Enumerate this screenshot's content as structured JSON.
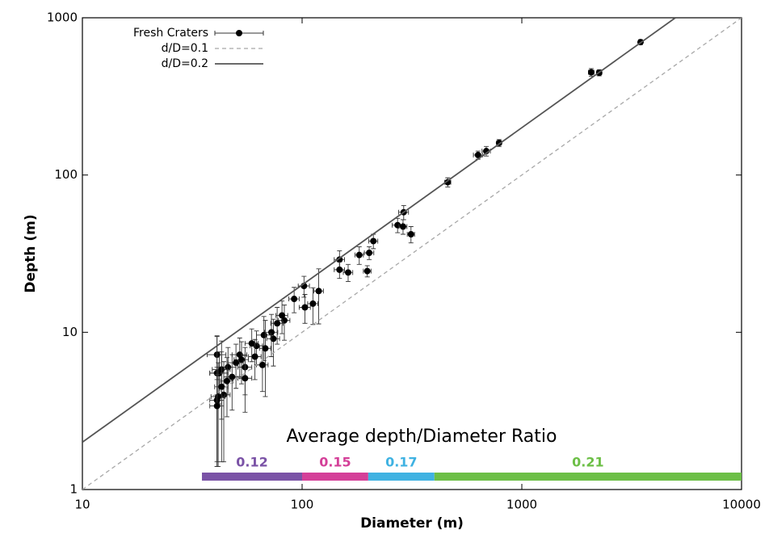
{
  "chart_data": {
    "type": "scatter",
    "xlabel": "Diameter (m)",
    "ylabel": "Depth (m)",
    "xscale": "log",
    "yscale": "log",
    "xlim": [
      10,
      10000
    ],
    "ylim": [
      1,
      1000
    ],
    "xticks": [
      10,
      100,
      1000,
      10000
    ],
    "yticks": [
      1,
      10,
      100,
      1000
    ],
    "legend": "upper left",
    "series": [
      {
        "name": "Fresh Craters",
        "type": "scatter",
        "color": "#000000",
        "x": [
          3470,
          2250,
          2070,
          788,
          689,
          632,
          460,
          290,
          272,
          288,
          313,
          211,
          202,
          198,
          182,
          162,
          148,
          148,
          119,
          112,
          102,
          103,
          92,
          83,
          81,
          77,
          74,
          72.5,
          67,
          68,
          66,
          62,
          59,
          61,
          55,
          52,
          53,
          50,
          55,
          48,
          46,
          42,
          43,
          41,
          41,
          44,
          43,
          41.5,
          41,
          41,
          45.5
        ],
        "y": [
          700,
          447,
          450,
          160,
          142,
          134,
          90,
          58,
          48,
          47,
          42,
          38,
          32,
          24.5,
          31,
          24,
          29,
          25,
          18.3,
          15.2,
          19.7,
          14.4,
          16.3,
          11.9,
          12.8,
          11.4,
          9.1,
          10,
          9.6,
          7.9,
          6.2,
          8.2,
          8.5,
          7.0,
          6.0,
          7.2,
          6.7,
          6.4,
          5.1,
          5.2,
          6.0,
          5.5,
          5.8,
          7.2,
          5.5,
          4.0,
          4.5,
          3.9,
          3.7,
          3.4,
          4.9
        ],
        "xerr": [
          50,
          60,
          60,
          20,
          30,
          30,
          15,
          15,
          15,
          12,
          12,
          10,
          10,
          8,
          8,
          8,
          8,
          8,
          6,
          6,
          6,
          6,
          5,
          5,
          5,
          5,
          5,
          5,
          5,
          4,
          4,
          4,
          4,
          4,
          4,
          4,
          4,
          4,
          4,
          4,
          4,
          4,
          4,
          4,
          3,
          3,
          3,
          3,
          3,
          3,
          3
        ],
        "yerr": [
          25,
          20,
          25,
          8,
          10,
          8,
          6,
          6,
          5,
          5,
          5,
          4,
          3,
          2,
          4,
          3,
          4,
          3,
          7,
          4,
          3,
          3,
          3,
          3,
          3,
          3,
          3,
          3,
          3,
          4,
          2,
          2,
          2,
          2,
          2,
          2,
          2,
          2,
          2,
          2,
          2,
          2,
          3,
          2.2,
          4,
          2.5,
          3,
          2.5,
          2.3,
          2,
          2
        ]
      },
      {
        "name": "d/D=0.1",
        "type": "line",
        "style": "dashed",
        "color": "#a8a8a8",
        "x": [
          10,
          10000
        ],
        "y": [
          1,
          1000
        ]
      },
      {
        "name": "d/D=0.2",
        "type": "line",
        "style": "solid",
        "color": "#555555",
        "x": [
          10,
          5000
        ],
        "y": [
          2,
          1000
        ]
      }
    ],
    "ratio_bar": {
      "title": "Average depth/Diameter Ratio",
      "segments": [
        {
          "value": 0.12,
          "from": 35,
          "to": 100,
          "color": "#7a52a6"
        },
        {
          "value": 0.15,
          "from": 100,
          "to": 200,
          "color": "#d43f98"
        },
        {
          "value": 0.17,
          "from": 200,
          "to": 400,
          "color": "#3fb2e2"
        },
        {
          "value": 0.21,
          "from": 400,
          "to": 10000,
          "color": "#6cbf46"
        }
      ]
    }
  }
}
